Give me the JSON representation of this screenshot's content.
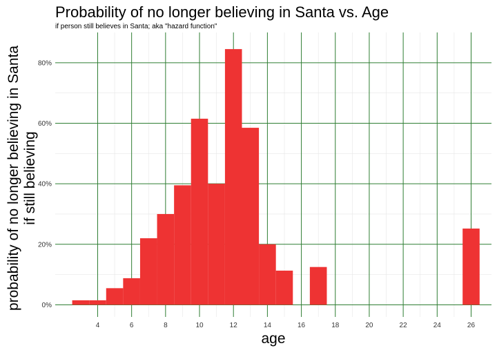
{
  "chart_data": {
    "type": "bar",
    "title": "Probability of no longer believing in Santa vs. Age",
    "subtitle": "if person still believes in Santa; aka \"hazard function\"",
    "xlabel": "age",
    "ylabel_lines": [
      "probability of no longer believing in Santa",
      "if still believing"
    ],
    "xlim": [
      1.5,
      27.2
    ],
    "ylim": [
      -0.04,
      0.9
    ],
    "x_ticks": [
      4,
      6,
      8,
      10,
      12,
      14,
      16,
      18,
      20,
      22,
      24,
      26
    ],
    "y_ticks": [
      0,
      0.2,
      0.4,
      0.6,
      0.8
    ],
    "y_tick_labels": [
      "0%",
      "20%",
      "40%",
      "60%",
      "80%"
    ],
    "bar_width": 1,
    "x": [
      3,
      4,
      5,
      6,
      7,
      8,
      9,
      10,
      11,
      12,
      13,
      14,
      15,
      17,
      26
    ],
    "values": [
      0.015,
      0.015,
      0.055,
      0.088,
      0.22,
      0.3,
      0.395,
      0.615,
      0.4,
      0.845,
      0.585,
      0.2,
      0.113,
      0.125,
      0.252
    ],
    "bar_color": "#EE3333",
    "grid": true,
    "grid_major_color": "#2E7D32",
    "grid_minor_color": "#E6E6E6",
    "legend": "none"
  }
}
